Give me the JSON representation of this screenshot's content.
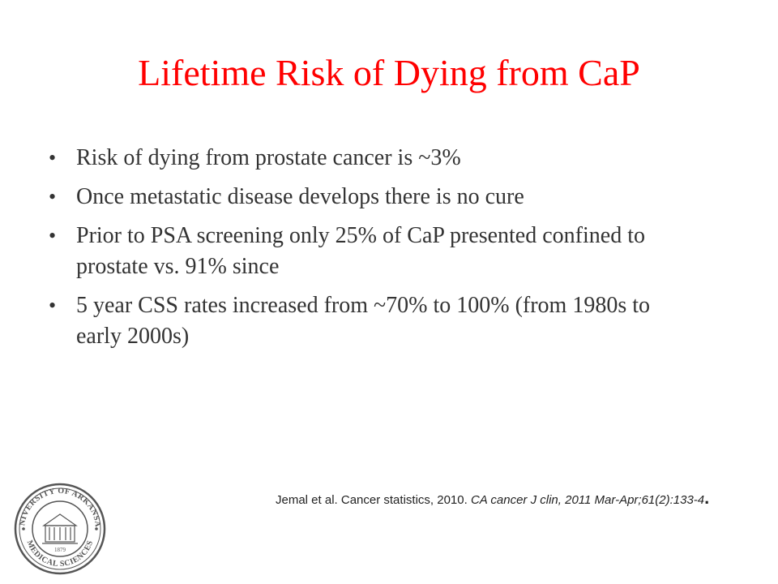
{
  "slide": {
    "title": "Lifetime Risk of Dying from CaP",
    "bullets": [
      "Risk of dying from prostate cancer is ~3%",
      "Once metastatic disease develops there is no cure",
      "Prior to PSA screening only 25% of CaP presented confined to prostate vs. 91% since",
      "5 year CSS rates increased from ~70% to 100% (from 1980s to early 2000s)"
    ],
    "bullet_glyph": "•",
    "citation": {
      "authors": "Jemal et al. Cancer statistics, 2010.",
      "journal": "CA cancer J clin, 2011 Mar-Apr;61(2):133-4",
      "end": "."
    },
    "logo": {
      "icon": "university-seal-icon",
      "text_top": "UNIVERSITY OF ARKANSAS",
      "text_bottom": "MEDICAL SCIENCES",
      "year": "1879"
    },
    "colors": {
      "title": "#ff0000",
      "body": "#333333",
      "seal": "#555555"
    }
  }
}
